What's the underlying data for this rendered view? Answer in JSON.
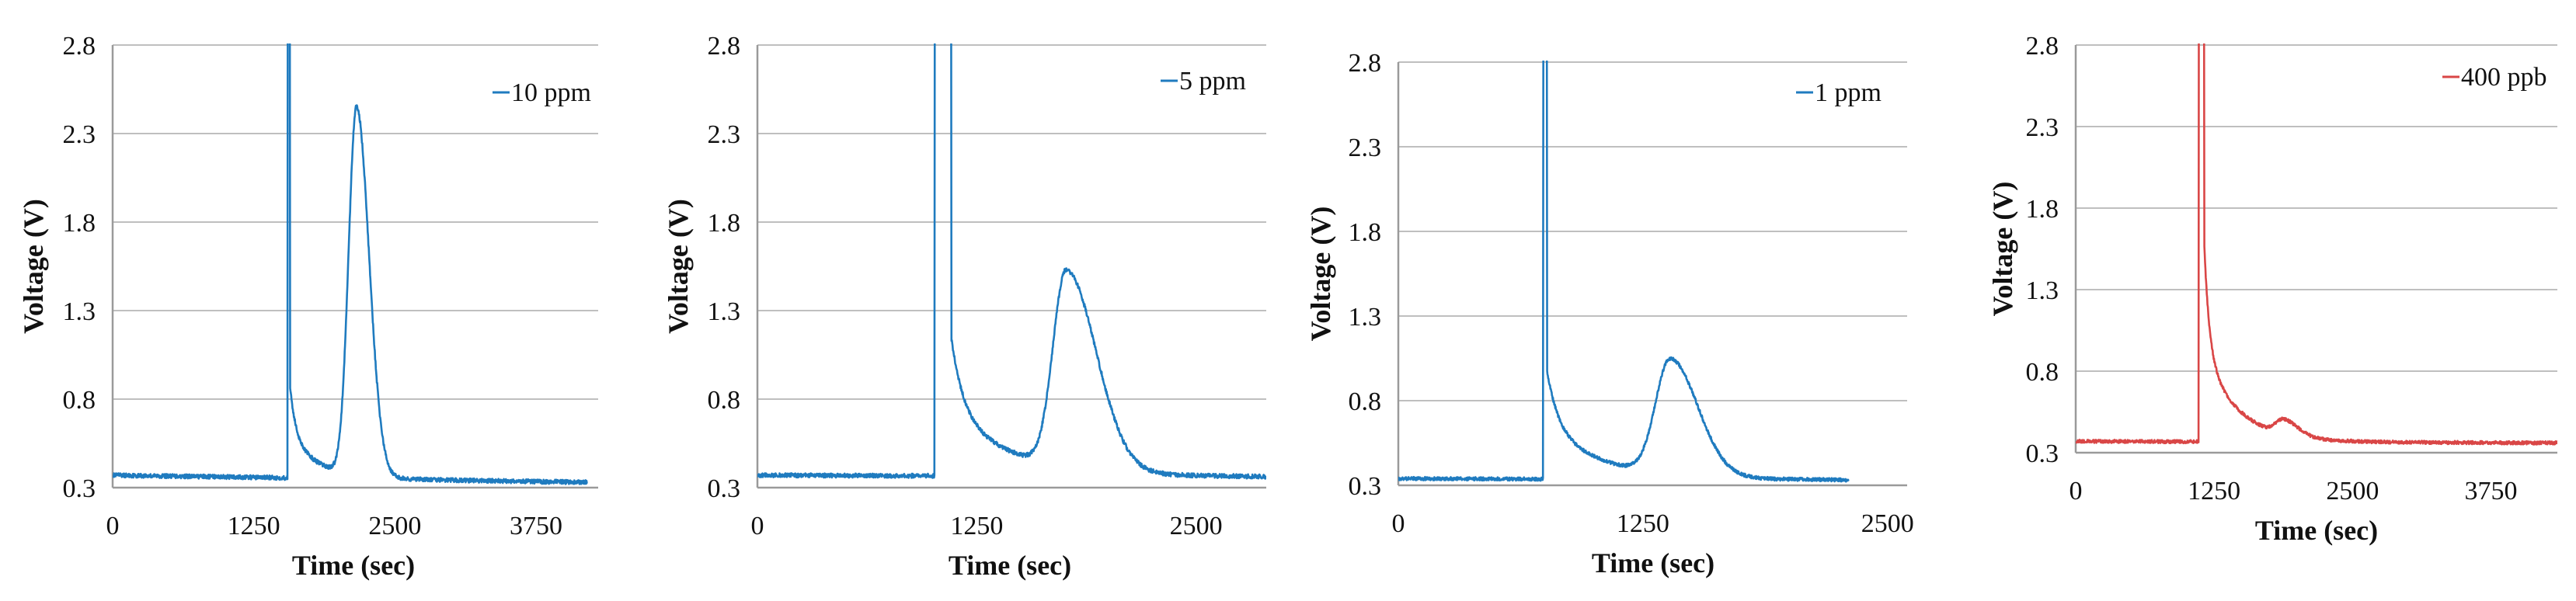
{
  "chart_data": [
    {
      "type": "line",
      "xlabel": "Time (sec)",
      "ylabel": "Voltage (V)",
      "xlim": [
        0,
        4300
      ],
      "ylim": [
        0.3,
        2.8
      ],
      "xticks": [
        0,
        1250,
        2500,
        3750
      ],
      "xtick_labels": [
        "0",
        "1250",
        "2500",
        "3750"
      ],
      "yticks": [
        0.3,
        0.8,
        1.3,
        1.8,
        2.3,
        2.8
      ],
      "ytick_labels": [
        "0.3",
        "0.8",
        "1.3",
        "1.8",
        "2.3",
        "2.8"
      ],
      "grid": true,
      "legend_position": "top-right",
      "series": [
        {
          "name": "10 ppm",
          "color": "#1f7bbf",
          "x_range": [
            0,
            4200
          ],
          "baseline": 0.37,
          "baseline_end": 0.33,
          "injection": {
            "start": 1550,
            "end": 1570,
            "top": 3.0,
            "tail": 0.9,
            "tail_decay": 50,
            "tail_width": 250
          },
          "peak": {
            "center": 2160,
            "height": 2.45,
            "rise": 70,
            "decay": 110
          },
          "noise": 0.012
        }
      ]
    },
    {
      "type": "line",
      "xlabel": "Time (sec)",
      "ylabel": "Voltage (V)",
      "xlim": [
        0,
        2900
      ],
      "ylim": [
        0.3,
        2.8
      ],
      "xticks": [
        0,
        1250,
        2500
      ],
      "xtick_labels": [
        "0",
        "1250",
        "2500"
      ],
      "yticks": [
        0.3,
        0.8,
        1.3,
        1.8,
        2.3,
        2.8
      ],
      "ytick_labels": [
        "0.3",
        "0.8",
        "1.3",
        "1.8",
        "2.3",
        "2.8"
      ],
      "grid": true,
      "legend_position": "top-right",
      "series": [
        {
          "name": "5 ppm",
          "color": "#1f7bbf",
          "x_range": [
            0,
            2900
          ],
          "baseline": 0.37,
          "baseline_end": 0.36,
          "injection": {
            "start": 1010,
            "end": 1105,
            "top": 3.0,
            "tail": 1.15,
            "tail_decay": 70,
            "tail_width": 360
          },
          "peak": {
            "center": 1760,
            "height": 1.48,
            "rise": 75,
            "decay": 170
          },
          "noise": 0.012
        }
      ]
    },
    {
      "type": "line",
      "xlabel": "Time (sec)",
      "ylabel": "Voltage (V)",
      "xlim": [
        0,
        2600
      ],
      "ylim": [
        0.3,
        2.8
      ],
      "xticks": [
        0,
        1250,
        2500
      ],
      "xtick_labels": [
        "0",
        "1250",
        "2500"
      ],
      "yticks": [
        0.3,
        0.8,
        1.3,
        1.8,
        2.3,
        2.8
      ],
      "ytick_labels": [
        "0.3",
        "0.8",
        "1.3",
        "1.8",
        "2.3",
        "2.8"
      ],
      "grid": true,
      "legend_position": "top-right",
      "series": [
        {
          "name": "1 ppm",
          "color": "#1f7bbf",
          "x_range": [
            0,
            2300
          ],
          "baseline": 0.34,
          "baseline_end": 0.33,
          "injection": {
            "start": 740,
            "end": 760,
            "top": 3.0,
            "tail": 0.98,
            "tail_decay": 60,
            "tail_width": 300
          },
          "peak": {
            "center": 1390,
            "height": 1.02,
            "rise": 75,
            "decay": 140
          },
          "noise": 0.01
        }
      ]
    },
    {
      "type": "line",
      "xlabel": "Time (sec)",
      "ylabel": "Voltage (V)",
      "xlim": [
        0,
        4350
      ],
      "ylim": [
        0.3,
        2.8
      ],
      "xticks": [
        0,
        1250,
        2500,
        3750
      ],
      "xtick_labels": [
        "0",
        "1250",
        "2500",
        "3750"
      ],
      "yticks": [
        0.3,
        0.8,
        1.3,
        1.8,
        2.3,
        2.8
      ],
      "ytick_labels": [
        "0.3",
        "0.8",
        "1.3",
        "1.8",
        "2.3",
        "2.8"
      ],
      "grid": true,
      "legend_position": "top-right",
      "series": [
        {
          "name": "400 ppb",
          "color": "#d94646",
          "x_range": [
            0,
            4350
          ],
          "baseline": 0.37,
          "baseline_end": 0.36,
          "injection": {
            "start": 1110,
            "end": 1160,
            "top": 3.0,
            "tail": 1.6,
            "tail_decay": 45,
            "tail_width": 300
          },
          "peak": {
            "center": 1880,
            "height": 0.46,
            "rise": 70,
            "decay": 130
          },
          "noise": 0.01
        }
      ]
    }
  ]
}
